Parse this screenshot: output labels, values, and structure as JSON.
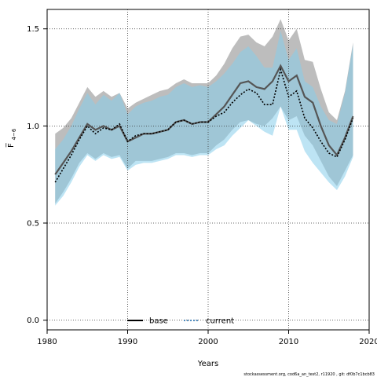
{
  "chart_data": {
    "type": "area",
    "xlabel": "Years",
    "ylabel": "F̅",
    "ylabel_sub": "4−6",
    "xlim": [
      1980,
      2020
    ],
    "ylim": [
      -0.05,
      1.6
    ],
    "xticks": [
      1980,
      1990,
      2000,
      2010,
      2020
    ],
    "yticks": [
      0.0,
      0.5,
      1.0,
      1.5
    ],
    "ytick_labels": [
      "0.0",
      "0.5",
      "1.0",
      "1.5"
    ],
    "grid": true,
    "legend_position": "bottom",
    "x": [
      1981,
      1982,
      1983,
      1984,
      1985,
      1986,
      1987,
      1988,
      1989,
      1990,
      1991,
      1992,
      1993,
      1994,
      1995,
      1996,
      1997,
      1998,
      1999,
      2000,
      2001,
      2002,
      2003,
      2004,
      2005,
      2006,
      2007,
      2008,
      2009,
      2010,
      2011,
      2012,
      2013,
      2014,
      2015,
      2016,
      2017,
      2018
    ],
    "series": [
      {
        "name": "base",
        "style": "solid",
        "color": "#555555",
        "band_color": "#bdbdbd",
        "values": [
          0.75,
          0.81,
          0.87,
          0.94,
          1.01,
          0.98,
          1.0,
          0.98,
          1.0,
          0.92,
          0.94,
          0.96,
          0.96,
          0.97,
          0.98,
          1.02,
          1.03,
          1.01,
          1.02,
          1.02,
          1.06,
          1.1,
          1.16,
          1.22,
          1.23,
          1.2,
          1.19,
          1.23,
          1.31,
          1.23,
          1.26,
          1.15,
          1.12,
          1.0,
          0.9,
          0.85,
          0.94,
          1.05
        ],
        "lower": [
          0.6,
          0.66,
          0.73,
          0.81,
          0.86,
          0.83,
          0.86,
          0.84,
          0.85,
          0.78,
          0.82,
          0.82,
          0.82,
          0.83,
          0.84,
          0.86,
          0.86,
          0.85,
          0.86,
          0.86,
          0.9,
          0.93,
          0.98,
          1.02,
          1.03,
          1.01,
          1.0,
          1.04,
          1.1,
          1.03,
          1.05,
          0.95,
          0.9,
          0.82,
          0.74,
          0.69,
          0.77,
          0.85
        ],
        "upper": [
          0.96,
          0.99,
          1.04,
          1.12,
          1.2,
          1.15,
          1.18,
          1.15,
          1.17,
          1.09,
          1.12,
          1.14,
          1.16,
          1.18,
          1.19,
          1.22,
          1.24,
          1.22,
          1.22,
          1.22,
          1.26,
          1.32,
          1.4,
          1.46,
          1.47,
          1.43,
          1.41,
          1.46,
          1.55,
          1.44,
          1.5,
          1.34,
          1.33,
          1.19,
          1.07,
          1.03,
          1.18,
          1.43
        ]
      },
      {
        "name": "current",
        "style": "dotted",
        "color": "#000000",
        "band_color": "#87ceeb",
        "values": [
          0.71,
          0.78,
          0.85,
          0.93,
          1.0,
          0.96,
          0.99,
          0.98,
          1.01,
          0.92,
          0.95,
          0.96,
          0.96,
          0.97,
          0.98,
          1.02,
          1.03,
          1.01,
          1.02,
          1.02,
          1.05,
          1.07,
          1.12,
          1.16,
          1.19,
          1.17,
          1.11,
          1.11,
          1.29,
          1.15,
          1.18,
          1.04,
          0.99,
          0.92,
          0.86,
          0.84,
          0.93,
          1.04
        ],
        "lower": [
          0.59,
          0.64,
          0.71,
          0.79,
          0.85,
          0.82,
          0.85,
          0.83,
          0.84,
          0.77,
          0.8,
          0.81,
          0.81,
          0.82,
          0.83,
          0.85,
          0.85,
          0.84,
          0.85,
          0.85,
          0.88,
          0.9,
          0.95,
          0.99,
          1.03,
          1.0,
          0.97,
          0.95,
          1.1,
          0.98,
          0.98,
          0.87,
          0.81,
          0.76,
          0.71,
          0.67,
          0.74,
          0.84
        ],
        "upper": [
          0.88,
          0.93,
          1.0,
          1.09,
          1.17,
          1.11,
          1.16,
          1.13,
          1.17,
          1.06,
          1.1,
          1.12,
          1.13,
          1.15,
          1.16,
          1.2,
          1.22,
          1.2,
          1.21,
          1.2,
          1.23,
          1.27,
          1.32,
          1.38,
          1.41,
          1.36,
          1.3,
          1.3,
          1.49,
          1.34,
          1.4,
          1.23,
          1.2,
          1.1,
          1.03,
          1.01,
          1.17,
          1.42
        ]
      }
    ],
    "caption": "stockassessment.org, cod6a_an_test2, r11920 , git: df0b7c1bcb83"
  }
}
